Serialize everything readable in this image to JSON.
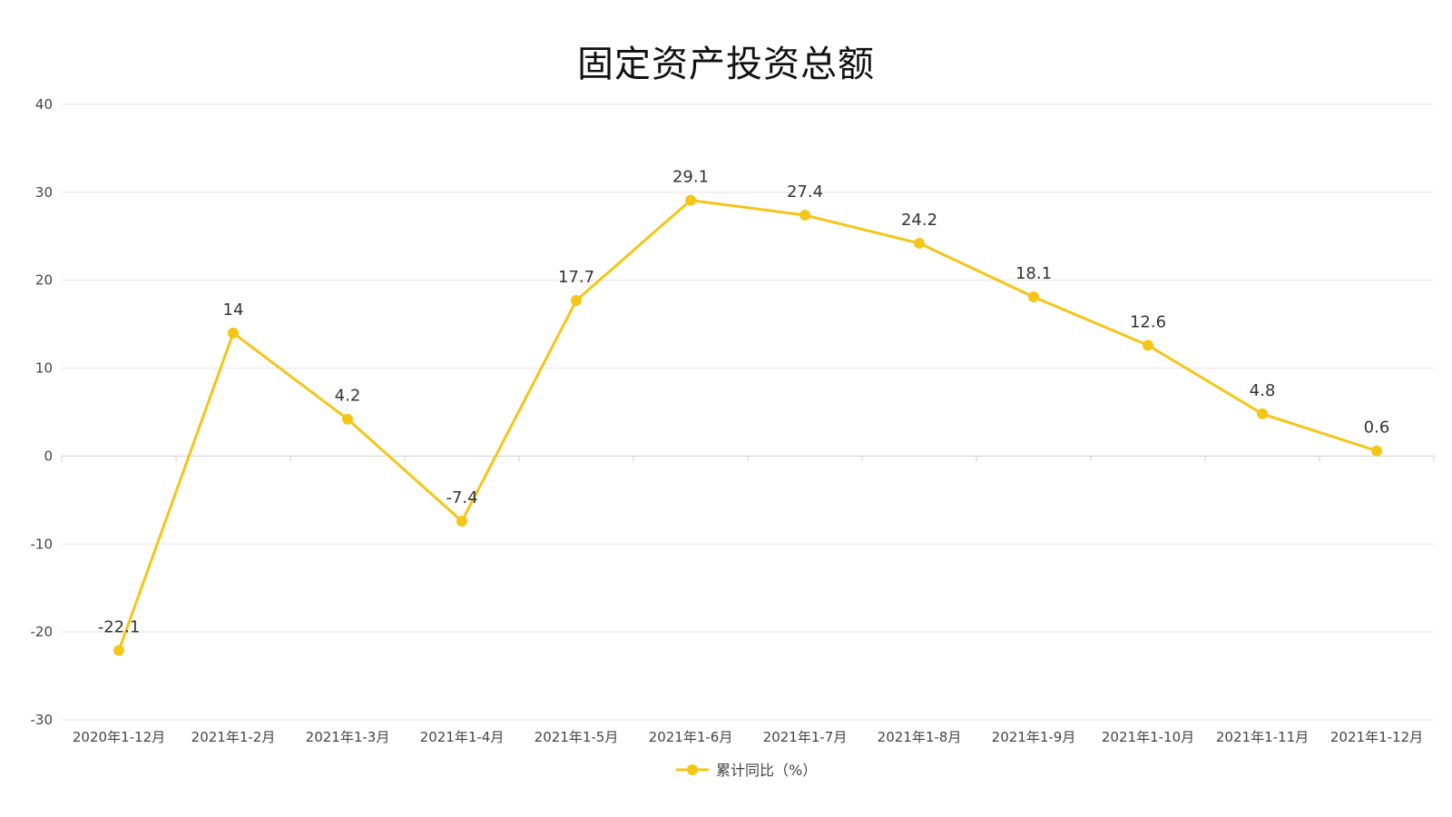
{
  "chart_data": {
    "type": "line",
    "title": "固定资产投资总额",
    "categories": [
      "2020年1-12月",
      "2021年1-2月",
      "2021年1-3月",
      "2021年1-4月",
      "2021年1-5月",
      "2021年1-6月",
      "2021年1-7月",
      "2021年1-8月",
      "2021年1-9月",
      "2021年1-10月",
      "2021年1-11月",
      "2021年1-12月"
    ],
    "series": [
      {
        "name": "累计同比（%）",
        "values": [
          -22.1,
          14,
          4.2,
          -7.4,
          17.7,
          29.1,
          27.4,
          24.2,
          18.1,
          12.6,
          4.8,
          0.6
        ],
        "color": "#F5C518"
      }
    ],
    "ylim": [
      -30,
      40
    ],
    "yticks": [
      -30,
      -20,
      -10,
      0,
      10,
      20,
      30,
      40
    ],
    "grid": true,
    "legend_position": "bottom-center"
  }
}
